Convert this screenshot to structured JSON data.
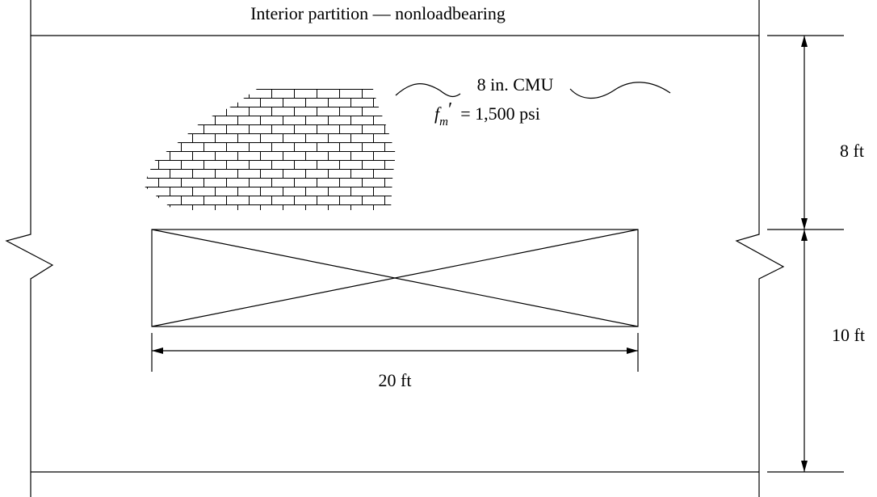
{
  "title": "Interior partition — nonloadbearing",
  "wall": {
    "material": "8 in. CMU",
    "strength": {
      "symbol": "f",
      "subscript": "m",
      "prime": "′",
      "value": "= 1,500 psi"
    }
  },
  "dimensions": {
    "upper_height": "8 ft",
    "lower_height": "10 ft",
    "opening_width": "20 ft"
  }
}
